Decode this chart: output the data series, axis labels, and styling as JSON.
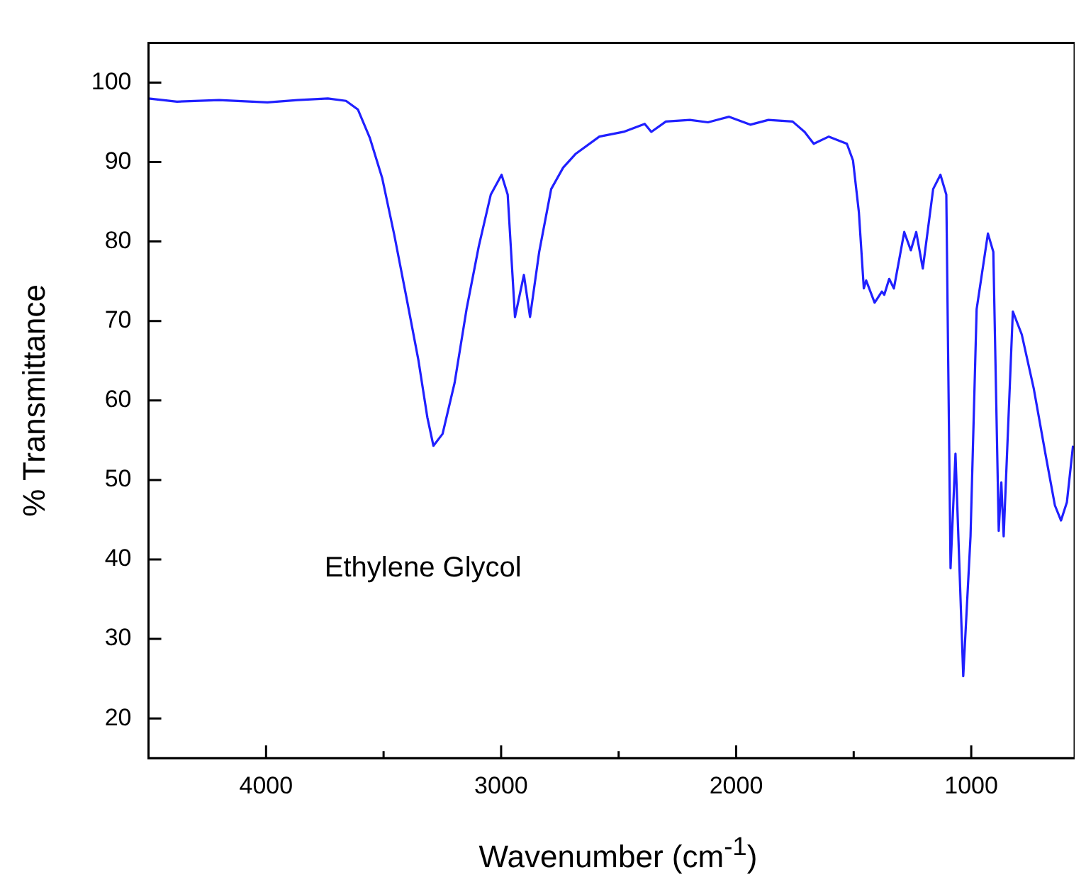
{
  "chart_data": {
    "type": "line",
    "xlabel": "Wavenumber (cm$^{-1}$)",
    "ylabel": "% Transmittance",
    "annotations": [
      "Ethylene Glycol"
    ],
    "xlim": [
      4500,
      560
    ],
    "xticks": [
      4000,
      {
        "value": 3500,
        "label": null
      },
      3000,
      {
        "value": 2500,
        "label": null
      },
      2000,
      {
        "value": 1500,
        "label": null
      },
      1000
    ],
    "ylim": [
      15,
      105
    ],
    "yticks": [
      20,
      30,
      40,
      50,
      60,
      70,
      80,
      90,
      100
    ],
    "grid": false,
    "legend": false,
    "marker": "none",
    "line_style": "solid",
    "series": [
      {
        "color": "#2020ff",
        "x": [
          4500,
          4379,
          4200,
          3994,
          3866,
          3737,
          3660,
          3609,
          3558,
          3506,
          3455,
          3403,
          3352,
          3314,
          3288,
          3249,
          3198,
          3147,
          3095,
          3044,
          2998,
          2972,
          2941,
          2903,
          2877,
          2838,
          2787,
          2736,
          2684,
          2582,
          2479,
          2389,
          2361,
          2299,
          2197,
          2120,
          2030,
          1940,
          1863,
          1760,
          1709,
          1670,
          1606,
          1529,
          1503,
          1478,
          1457,
          1447,
          1411,
          1380,
          1370,
          1349,
          1329,
          1285,
          1257,
          1234,
          1206,
          1162,
          1131,
          1106,
          1088,
          1067,
          1034,
          1003,
          977,
          929,
          906,
          883,
          872,
          862,
          823,
          785,
          734,
          682,
          644,
          618,
          593,
          567
        ],
        "values": [
          98.0,
          97.6,
          97.8,
          97.5,
          97.8,
          98.0,
          97.7,
          96.6,
          93.0,
          88.0,
          80.9,
          73.0,
          65.1,
          57.9,
          54.3,
          55.8,
          62.2,
          71.5,
          79.4,
          85.9,
          88.4,
          85.9,
          70.5,
          75.8,
          70.5,
          78.7,
          86.6,
          89.3,
          91.0,
          93.2,
          93.8,
          94.8,
          93.8,
          95.1,
          95.3,
          95.0,
          95.7,
          94.7,
          95.3,
          95.1,
          93.8,
          92.3,
          93.2,
          92.3,
          90.2,
          83.7,
          74.1,
          75.1,
          72.3,
          73.7,
          73.3,
          75.3,
          74.1,
          81.2,
          78.9,
          81.2,
          76.6,
          86.6,
          88.4,
          85.9,
          38.9,
          53.3,
          25.3,
          42.9,
          71.5,
          81.0,
          78.7,
          43.6,
          49.7,
          42.9,
          71.2,
          68.3,
          61.5,
          52.9,
          46.8,
          44.9,
          47.2,
          54.3
        ]
      }
    ]
  }
}
